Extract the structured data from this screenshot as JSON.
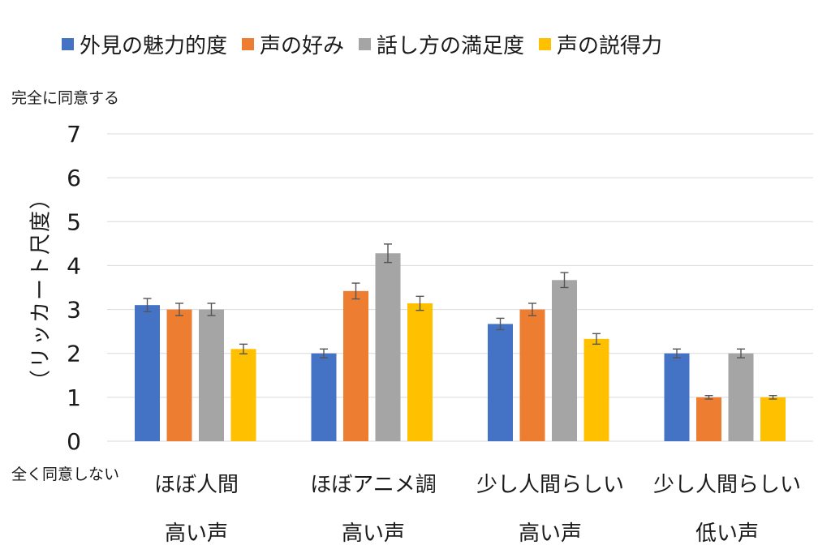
{
  "chart_data": {
    "type": "bar",
    "categories": [
      [
        "ほぼ人間",
        "高い声"
      ],
      [
        "ほぼアニメ調",
        "高い声"
      ],
      [
        "少し人間らしい",
        "高い声"
      ],
      [
        "少し人間らしい",
        "低い声"
      ]
    ],
    "series": [
      {
        "name": "外見の魅力的度",
        "color": "#4472c4",
        "values": [
          3.1,
          2.0,
          2.67,
          2.0
        ],
        "errors": [
          0.15,
          0.1,
          0.13,
          0.1
        ]
      },
      {
        "name": "声の好み",
        "color": "#ed7d31",
        "values": [
          3.0,
          3.42,
          3.0,
          1.0
        ],
        "errors": [
          0.14,
          0.18,
          0.14,
          0.04
        ]
      },
      {
        "name": "話し方の満足度",
        "color": "#a5a5a5",
        "values": [
          3.0,
          4.28,
          3.67,
          2.0
        ],
        "errors": [
          0.14,
          0.21,
          0.17,
          0.1
        ]
      },
      {
        "name": "声の説得力",
        "color": "#ffc000",
        "values": [
          2.1,
          3.14,
          2.33,
          1.0
        ],
        "errors": [
          0.11,
          0.16,
          0.12,
          0.04
        ]
      }
    ],
    "ylim": [
      0,
      7
    ],
    "yticks": [
      "0",
      "1",
      "2",
      "3",
      "4",
      "5",
      "6",
      "7"
    ],
    "ylabel": "（リッカート尺度）",
    "annotations": {
      "top": "完全に同意する",
      "bottom": "全く同意しない"
    },
    "grid": true,
    "legend_position": "top"
  }
}
